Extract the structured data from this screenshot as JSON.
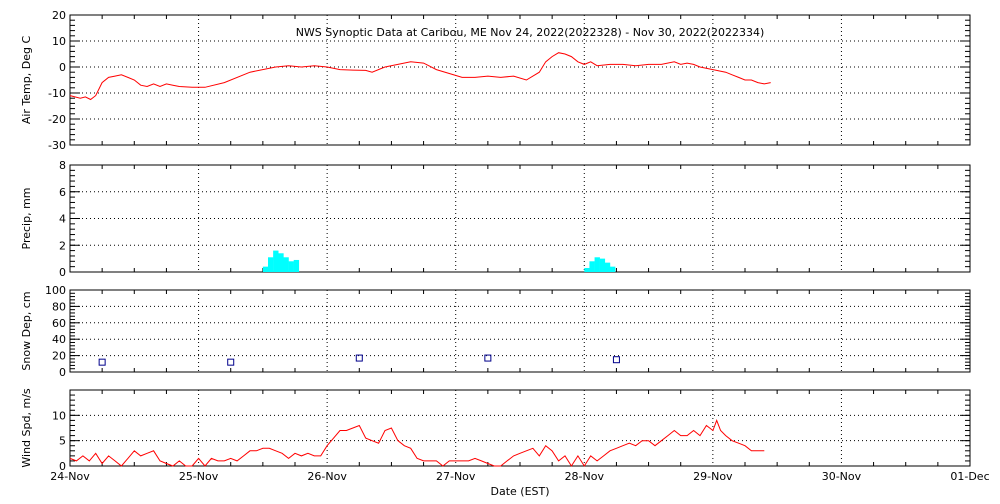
{
  "title": "NWS Synoptic Data at Caribou, ME    Nov 24, 2022(2022328) - Nov 30, 2022(2022334)",
  "xlabel": "Date (EST)",
  "date_ticks": [
    "24-Nov",
    "25-Nov",
    "26-Nov",
    "27-Nov",
    "28-Nov",
    "29-Nov",
    "30-Nov",
    "01-Dec"
  ],
  "colors": {
    "temp": "#ff0000",
    "precip": "#00ffff",
    "snow": "#00008b",
    "wind": "#ff0000",
    "grid": "#000000"
  },
  "chart_data": [
    {
      "type": "line",
      "ylabel": "Air Temp, Deg C",
      "ylim": [
        -30,
        20
      ],
      "yticks": [
        -30,
        -20,
        -10,
        0,
        10,
        20
      ],
      "x_units": "days since 24-Nov 00:00 EST",
      "series": [
        {
          "name": "Air Temp",
          "values": [
            [
              0.0,
              -11
            ],
            [
              0.08,
              -12
            ],
            [
              0.12,
              -11.5
            ],
            [
              0.16,
              -12.5
            ],
            [
              0.2,
              -11
            ],
            [
              0.25,
              -6
            ],
            [
              0.3,
              -4
            ],
            [
              0.35,
              -3.5
            ],
            [
              0.4,
              -3
            ],
            [
              0.45,
              -4
            ],
            [
              0.5,
              -5
            ],
            [
              0.55,
              -7
            ],
            [
              0.6,
              -7.5
            ],
            [
              0.65,
              -6.5
            ],
            [
              0.7,
              -7.5
            ],
            [
              0.75,
              -6.5
            ],
            [
              0.8,
              -7
            ],
            [
              0.85,
              -7.5
            ],
            [
              0.95,
              -7.8
            ],
            [
              1.05,
              -7.8
            ],
            [
              1.2,
              -6
            ],
            [
              1.4,
              -2
            ],
            [
              1.6,
              0
            ],
            [
              1.7,
              0.5
            ],
            [
              1.8,
              0
            ],
            [
              1.9,
              0.5
            ],
            [
              2.0,
              0
            ],
            [
              2.1,
              -1
            ],
            [
              2.2,
              -1.2
            ],
            [
              2.3,
              -1.3
            ],
            [
              2.35,
              -2
            ],
            [
              2.45,
              0
            ],
            [
              2.55,
              1
            ],
            [
              2.65,
              2
            ],
            [
              2.75,
              1.5
            ],
            [
              2.85,
              -1
            ],
            [
              2.95,
              -2.5
            ],
            [
              3.05,
              -4
            ],
            [
              3.15,
              -4
            ],
            [
              3.25,
              -3.5
            ],
            [
              3.35,
              -4
            ],
            [
              3.45,
              -3.5
            ],
            [
              3.55,
              -5
            ],
            [
              3.65,
              -2
            ],
            [
              3.7,
              2
            ],
            [
              3.75,
              4
            ],
            [
              3.8,
              5.5
            ],
            [
              3.85,
              5
            ],
            [
              3.9,
              4
            ],
            [
              3.95,
              2
            ],
            [
              4.0,
              1
            ],
            [
              4.05,
              2
            ],
            [
              4.1,
              0.5
            ],
            [
              4.2,
              1
            ],
            [
              4.3,
              1
            ],
            [
              4.4,
              0.5
            ],
            [
              4.5,
              1
            ],
            [
              4.6,
              1
            ],
            [
              4.7,
              2
            ],
            [
              4.75,
              1
            ],
            [
              4.8,
              1.5
            ],
            [
              4.85,
              1
            ],
            [
              4.9,
              0
            ],
            [
              5.0,
              -1
            ],
            [
              5.1,
              -2
            ],
            [
              5.15,
              -3
            ],
            [
              5.2,
              -4
            ],
            [
              5.25,
              -5
            ],
            [
              5.3,
              -5
            ],
            [
              5.35,
              -6
            ],
            [
              5.4,
              -6.5
            ],
            [
              5.45,
              -6
            ]
          ]
        }
      ]
    },
    {
      "type": "bar",
      "ylabel": "Precip, mm",
      "ylim": [
        0,
        8
      ],
      "yticks": [
        0,
        2,
        4,
        6,
        8
      ],
      "x_units": "days since 24-Nov 00:00 EST",
      "bar_width_days": 0.0417,
      "series": [
        {
          "name": "Precip",
          "values": [
            [
              1.5,
              0.4
            ],
            [
              1.54,
              1.1
            ],
            [
              1.58,
              1.6
            ],
            [
              1.62,
              1.4
            ],
            [
              1.66,
              1.1
            ],
            [
              1.7,
              0.8
            ],
            [
              1.74,
              0.9
            ],
            [
              4.0,
              0.3
            ],
            [
              4.04,
              0.8
            ],
            [
              4.08,
              1.1
            ],
            [
              4.12,
              1.0
            ],
            [
              4.16,
              0.7
            ],
            [
              4.2,
              0.4
            ]
          ]
        }
      ]
    },
    {
      "type": "scatter",
      "ylabel": "Snow Dep, cm",
      "ylim": [
        0,
        100
      ],
      "yticks": [
        0,
        20,
        40,
        60,
        80,
        100
      ],
      "x_units": "days since 24-Nov 00:00 EST",
      "series": [
        {
          "name": "Snow Depth",
          "values": [
            [
              0.25,
              12
            ],
            [
              1.25,
              12
            ],
            [
              2.25,
              17
            ],
            [
              3.25,
              17
            ],
            [
              4.25,
              15
            ]
          ]
        }
      ]
    },
    {
      "type": "line",
      "ylabel": "Wind Spd, m/s",
      "ylim": [
        0,
        15
      ],
      "yticks": [
        0,
        5,
        10
      ],
      "x_units": "days since 24-Nov 00:00 EST",
      "series": [
        {
          "name": "Wind Speed",
          "values": [
            [
              0.0,
              1.5
            ],
            [
              0.05,
              1
            ],
            [
              0.1,
              2
            ],
            [
              0.15,
              1
            ],
            [
              0.2,
              2.5
            ],
            [
              0.25,
              0.5
            ],
            [
              0.3,
              2
            ],
            [
              0.35,
              1
            ],
            [
              0.4,
              0
            ],
            [
              0.45,
              1.5
            ],
            [
              0.5,
              3
            ],
            [
              0.55,
              2
            ],
            [
              0.6,
              2.5
            ],
            [
              0.65,
              3
            ],
            [
              0.7,
              1
            ],
            [
              0.75,
              0.5
            ],
            [
              0.8,
              0
            ],
            [
              0.85,
              1
            ],
            [
              0.9,
              0
            ],
            [
              0.95,
              0
            ],
            [
              1.0,
              1.5
            ],
            [
              1.05,
              0
            ],
            [
              1.1,
              1.5
            ],
            [
              1.15,
              1
            ],
            [
              1.2,
              1
            ],
            [
              1.25,
              1.5
            ],
            [
              1.3,
              1
            ],
            [
              1.35,
              2
            ],
            [
              1.4,
              3
            ],
            [
              1.45,
              3
            ],
            [
              1.5,
              3.5
            ],
            [
              1.55,
              3.5
            ],
            [
              1.6,
              3
            ],
            [
              1.65,
              2.5
            ],
            [
              1.7,
              1.5
            ],
            [
              1.75,
              2.5
            ],
            [
              1.8,
              2
            ],
            [
              1.85,
              2.5
            ],
            [
              1.9,
              2
            ],
            [
              1.95,
              2
            ],
            [
              2.0,
              4
            ],
            [
              2.05,
              5.5
            ],
            [
              2.1,
              7
            ],
            [
              2.15,
              7
            ],
            [
              2.2,
              7.5
            ],
            [
              2.25,
              8
            ],
            [
              2.3,
              5.5
            ],
            [
              2.35,
              5
            ],
            [
              2.4,
              4.5
            ],
            [
              2.45,
              7
            ],
            [
              2.5,
              7.5
            ],
            [
              2.55,
              5
            ],
            [
              2.6,
              4
            ],
            [
              2.65,
              3.5
            ],
            [
              2.7,
              1.5
            ],
            [
              2.75,
              1
            ],
            [
              2.8,
              1
            ],
            [
              2.85,
              1
            ],
            [
              2.9,
              0
            ],
            [
              2.95,
              1
            ],
            [
              3.0,
              1
            ],
            [
              3.05,
              1
            ],
            [
              3.1,
              1
            ],
            [
              3.15,
              1.5
            ],
            [
              3.2,
              1
            ],
            [
              3.25,
              0.5
            ],
            [
              3.3,
              0
            ],
            [
              3.35,
              0
            ],
            [
              3.4,
              1
            ],
            [
              3.45,
              2
            ],
            [
              3.5,
              2.5
            ],
            [
              3.55,
              3
            ],
            [
              3.6,
              3.5
            ],
            [
              3.65,
              2
            ],
            [
              3.7,
              4
            ],
            [
              3.75,
              3
            ],
            [
              3.8,
              1
            ],
            [
              3.85,
              2
            ],
            [
              3.9,
              0
            ],
            [
              3.95,
              2
            ],
            [
              4.0,
              0
            ],
            [
              4.05,
              2
            ],
            [
              4.1,
              1
            ],
            [
              4.15,
              2
            ],
            [
              4.2,
              3
            ],
            [
              4.25,
              3.5
            ],
            [
              4.3,
              4
            ],
            [
              4.35,
              4.5
            ],
            [
              4.4,
              4
            ],
            [
              4.45,
              5
            ],
            [
              4.5,
              5
            ],
            [
              4.55,
              4
            ],
            [
              4.6,
              5
            ],
            [
              4.65,
              6
            ],
            [
              4.7,
              7
            ],
            [
              4.75,
              6
            ],
            [
              4.8,
              6
            ],
            [
              4.85,
              7
            ],
            [
              4.9,
              6
            ],
            [
              4.95,
              8
            ],
            [
              5.0,
              7
            ],
            [
              5.03,
              9
            ],
            [
              5.06,
              7
            ],
            [
              5.1,
              6
            ],
            [
              5.15,
              5
            ],
            [
              5.2,
              4.5
            ],
            [
              5.25,
              4
            ],
            [
              5.3,
              3
            ],
            [
              5.35,
              3
            ],
            [
              5.4,
              3
            ]
          ]
        }
      ]
    }
  ]
}
